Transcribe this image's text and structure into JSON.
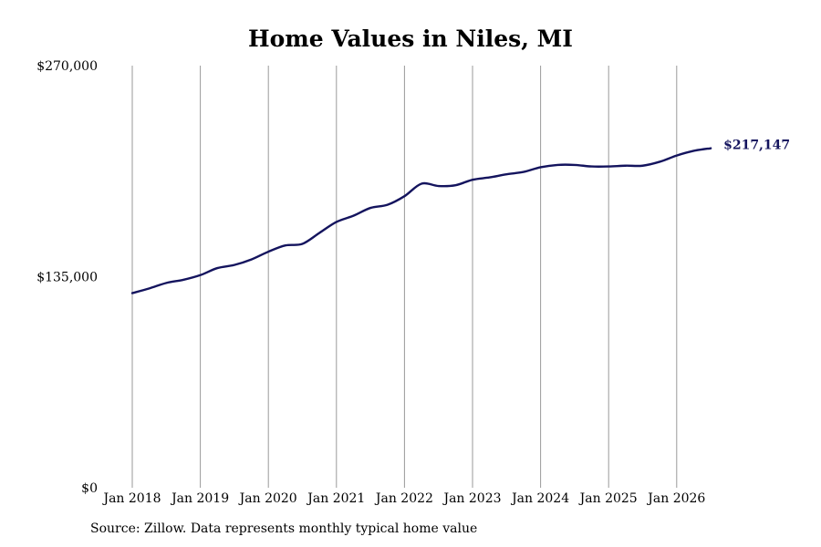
{
  "title": "Home Values in Niles, MI",
  "source": "Source: Zillow. Data represents monthly typical home value",
  "chart_data": {
    "type": "line",
    "title": "Home Values in Niles, MI",
    "xlabel": "",
    "ylabel": "",
    "ylim": [
      0,
      270000
    ],
    "yticks": [
      0,
      135000,
      270000
    ],
    "ytick_labels": [
      "$0",
      "$135,000",
      "$270,000"
    ],
    "xticks": [
      "2018-01",
      "2019-01",
      "2020-01",
      "2021-01",
      "2022-01",
      "2023-01",
      "2024-01",
      "2025-01",
      "2026-01"
    ],
    "xtick_labels": [
      "Jan 2018",
      "Jan 2019",
      "Jan 2020",
      "Jan 2021",
      "Jan 2022",
      "Jan 2023",
      "Jan 2024",
      "Jan 2025",
      "Jan 2026"
    ],
    "grid": "vertical",
    "line_color": "#14145e",
    "end_label": "$217,147",
    "series": [
      {
        "x": [
          "2018-01",
          "2018-04",
          "2018-07",
          "2018-10",
          "2019-01",
          "2019-04",
          "2019-07",
          "2019-10",
          "2020-01",
          "2020-04",
          "2020-07",
          "2020-10",
          "2021-01",
          "2021-04",
          "2021-07",
          "2021-10",
          "2022-01",
          "2022-04",
          "2022-07",
          "2022-10",
          "2023-01",
          "2023-04",
          "2023-07",
          "2023-10",
          "2024-01",
          "2024-04",
          "2024-07",
          "2024-10",
          "2025-01",
          "2025-04",
          "2025-07",
          "2025-10",
          "2026-01",
          "2026-04",
          "2026-07"
        ],
        "values": [
          124500,
          127500,
          131000,
          133000,
          136000,
          140500,
          142500,
          146000,
          151000,
          155000,
          156000,
          163000,
          170000,
          174000,
          179000,
          181000,
          186500,
          194500,
          193000,
          193500,
          197000,
          198500,
          200500,
          202000,
          205000,
          206500,
          206500,
          205500,
          205500,
          206000,
          206000,
          208500,
          212500,
          215500,
          217147
        ]
      }
    ]
  }
}
